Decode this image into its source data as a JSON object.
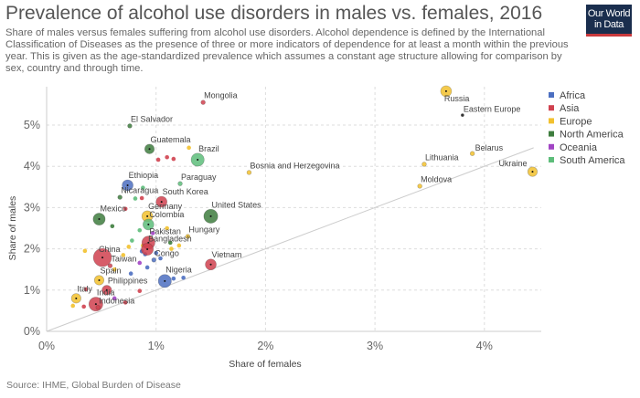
{
  "header": {
    "title": "Prevalence of alcohol use disorders in males vs. females, 2016",
    "subtitle": "Share of males versus females suffering from alcohol use disorders. Alcohol dependence is defined by the International Classification of Diseases as the presence of three or more indicators of dependence for at least a month within the previous year. This is given as the age-standardized prevalence which assumes a constant age structure allowing for comparison by sex, country and through time.",
    "logo_line1": "Our World",
    "logo_line2": "in Data"
  },
  "footer": {
    "source": "Source: IHME, Global Burden of Disease"
  },
  "chart_data": {
    "type": "scatter",
    "title": "Prevalence of alcohol use disorders in males vs. females, 2016",
    "xlabel": "Share of females",
    "ylabel": "Share of males",
    "xlim": [
      0,
      4.5
    ],
    "ylim": [
      0,
      5.9
    ],
    "x_ticks": [
      0,
      1,
      2,
      3,
      4
    ],
    "y_ticks": [
      0,
      1,
      2,
      3,
      4,
      5
    ],
    "x_tick_labels": [
      "0%",
      "1%",
      "2%",
      "3%",
      "4%"
    ],
    "y_tick_labels": [
      "0%",
      "1%",
      "2%",
      "3%",
      "4%",
      "5%"
    ],
    "grid": true,
    "reference_line": "y = x",
    "legend_position": "right",
    "legend": [
      {
        "name": "Africa",
        "color": "#4c6fc1"
      },
      {
        "name": "Asia",
        "color": "#d0414f"
      },
      {
        "name": "Europe",
        "color": "#f2c12e"
      },
      {
        "name": "North America",
        "color": "#3e7d3e"
      },
      {
        "name": "Oceania",
        "color": "#a144c4"
      },
      {
        "name": "South America",
        "color": "#5dbd7a"
      }
    ],
    "points": [
      {
        "label": "Russia",
        "x": 3.65,
        "y": 5.82,
        "region": "Europe",
        "size": 3
      },
      {
        "label": "Eastern Europe",
        "x": 3.8,
        "y": 5.24,
        "region": "Aggregate",
        "size": 0
      },
      {
        "label": "Belarus",
        "x": 3.89,
        "y": 4.31,
        "region": "Europe",
        "size": 1
      },
      {
        "label": "Ukraine",
        "x": 4.44,
        "y": 3.87,
        "region": "Europe",
        "size": 2
      },
      {
        "label": "Lithuania",
        "x": 3.45,
        "y": 4.05,
        "region": "Europe",
        "size": 1
      },
      {
        "label": "Moldova",
        "x": 3.41,
        "y": 3.52,
        "region": "Europe",
        "size": 1
      },
      {
        "label": "Bosnia and Herzegovina",
        "x": 1.85,
        "y": 3.85,
        "region": "Europe",
        "size": 1
      },
      {
        "label": "Mongolia",
        "x": 1.43,
        "y": 5.55,
        "region": "Asia",
        "size": 1
      },
      {
        "label": "El Salvador",
        "x": 0.76,
        "y": 4.98,
        "region": "North America",
        "size": 1
      },
      {
        "label": "Guatemala",
        "x": 0.94,
        "y": 4.42,
        "region": "North America",
        "size": 2
      },
      {
        "label": "Brazil",
        "x": 1.38,
        "y": 4.16,
        "region": "South America",
        "size": 5
      },
      {
        "label": "Paraguay",
        "x": 1.22,
        "y": 3.58,
        "region": "South America",
        "size": 1
      },
      {
        "label": "Ethiopia",
        "x": 0.74,
        "y": 3.54,
        "region": "Africa",
        "size": 3
      },
      {
        "label": "Nicaragua",
        "x": 0.67,
        "y": 3.25,
        "region": "North America",
        "size": 1
      },
      {
        "label": "South Korea",
        "x": 1.05,
        "y": 3.14,
        "region": "Asia",
        "size": 3
      },
      {
        "label": "United States",
        "x": 1.5,
        "y": 2.79,
        "region": "North America",
        "size": 6
      },
      {
        "label": "Mexico",
        "x": 0.48,
        "y": 2.72,
        "region": "North America",
        "size": 4
      },
      {
        "label": "Germany",
        "x": 0.92,
        "y": 2.79,
        "region": "Europe",
        "size": 3
      },
      {
        "label": "Colombia",
        "x": 0.93,
        "y": 2.59,
        "region": "South America",
        "size": 3
      },
      {
        "label": "Hungary",
        "x": 1.29,
        "y": 2.3,
        "region": "Europe",
        "size": 1
      },
      {
        "label": "Pakistan",
        "x": 0.93,
        "y": 2.15,
        "region": "Asia",
        "size": 5
      },
      {
        "label": "Bangladesh",
        "x": 0.92,
        "y": 1.99,
        "region": "Asia",
        "size": 4
      },
      {
        "label": "Congo",
        "x": 0.98,
        "y": 1.73,
        "region": "Africa",
        "size": 1
      },
      {
        "label": "Vietnam",
        "x": 1.5,
        "y": 1.62,
        "region": "Asia",
        "size": 3
      },
      {
        "label": "China",
        "x": 0.51,
        "y": 1.79,
        "region": "Asia",
        "size": 12
      },
      {
        "label": "Taiwan",
        "x": 0.58,
        "y": 1.59,
        "region": "Asia",
        "size": 1
      },
      {
        "label": "Spain",
        "x": 0.48,
        "y": 1.24,
        "region": "Europe",
        "size": 2
      },
      {
        "label": "Philippines",
        "x": 0.55,
        "y": 1.0,
        "region": "Asia",
        "size": 2
      },
      {
        "label": "Nigeria",
        "x": 1.08,
        "y": 1.22,
        "region": "Africa",
        "size": 5
      },
      {
        "label": "India",
        "x": 0.45,
        "y": 0.66,
        "region": "Asia",
        "size": 6
      },
      {
        "label": "Indonesia",
        "x": 0.47,
        "y": 0.58,
        "region": "Asia",
        "size": 1
      },
      {
        "label": "Italy",
        "x": 0.27,
        "y": 0.8,
        "region": "Europe",
        "size": 2
      }
    ],
    "unlabeled_points": [
      {
        "x": 1.1,
        "y": 4.22,
        "region": "Asia"
      },
      {
        "x": 1.16,
        "y": 4.18,
        "region": "Asia"
      },
      {
        "x": 1.02,
        "y": 4.16,
        "region": "Asia"
      },
      {
        "x": 1.3,
        "y": 4.45,
        "region": "Europe"
      },
      {
        "x": 0.87,
        "y": 3.23,
        "region": "Asia"
      },
      {
        "x": 0.81,
        "y": 3.22,
        "region": "South America"
      },
      {
        "x": 0.88,
        "y": 3.48,
        "region": "South America"
      },
      {
        "x": 0.72,
        "y": 2.97,
        "region": "Asia"
      },
      {
        "x": 0.6,
        "y": 2.55,
        "region": "North America"
      },
      {
        "x": 0.85,
        "y": 2.45,
        "region": "South America"
      },
      {
        "x": 0.78,
        "y": 2.2,
        "region": "South America"
      },
      {
        "x": 0.75,
        "y": 2.05,
        "region": "Europe"
      },
      {
        "x": 0.88,
        "y": 2.08,
        "region": "Europe"
      },
      {
        "x": 1.14,
        "y": 2.0,
        "region": "Europe"
      },
      {
        "x": 1.21,
        "y": 2.08,
        "region": "Europe"
      },
      {
        "x": 1.13,
        "y": 2.15,
        "region": "North America"
      },
      {
        "x": 0.97,
        "y": 2.38,
        "region": "Oceania"
      },
      {
        "x": 0.87,
        "y": 1.94,
        "region": "Africa"
      },
      {
        "x": 0.9,
        "y": 1.87,
        "region": "Africa"
      },
      {
        "x": 1.0,
        "y": 1.9,
        "region": "Africa"
      },
      {
        "x": 1.04,
        "y": 1.77,
        "region": "Africa"
      },
      {
        "x": 0.85,
        "y": 1.66,
        "region": "Oceania"
      },
      {
        "x": 0.92,
        "y": 1.55,
        "region": "Africa"
      },
      {
        "x": 0.7,
        "y": 1.85,
        "region": "Europe"
      },
      {
        "x": 0.35,
        "y": 1.95,
        "region": "Europe"
      },
      {
        "x": 0.62,
        "y": 1.5,
        "region": "Europe"
      },
      {
        "x": 0.77,
        "y": 1.4,
        "region": "Africa"
      },
      {
        "x": 0.36,
        "y": 1.02,
        "region": "Asia"
      },
      {
        "x": 0.62,
        "y": 0.8,
        "region": "Oceania"
      },
      {
        "x": 0.85,
        "y": 0.98,
        "region": "Asia"
      },
      {
        "x": 0.24,
        "y": 0.62,
        "region": "Europe"
      },
      {
        "x": 0.34,
        "y": 0.6,
        "region": "Asia"
      },
      {
        "x": 0.72,
        "y": 0.7,
        "region": "Asia"
      },
      {
        "x": 1.25,
        "y": 1.3,
        "region": "Africa"
      },
      {
        "x": 1.16,
        "y": 1.28,
        "region": "Africa"
      },
      {
        "x": 1.1,
        "y": 2.5,
        "region": "Europe"
      }
    ]
  }
}
